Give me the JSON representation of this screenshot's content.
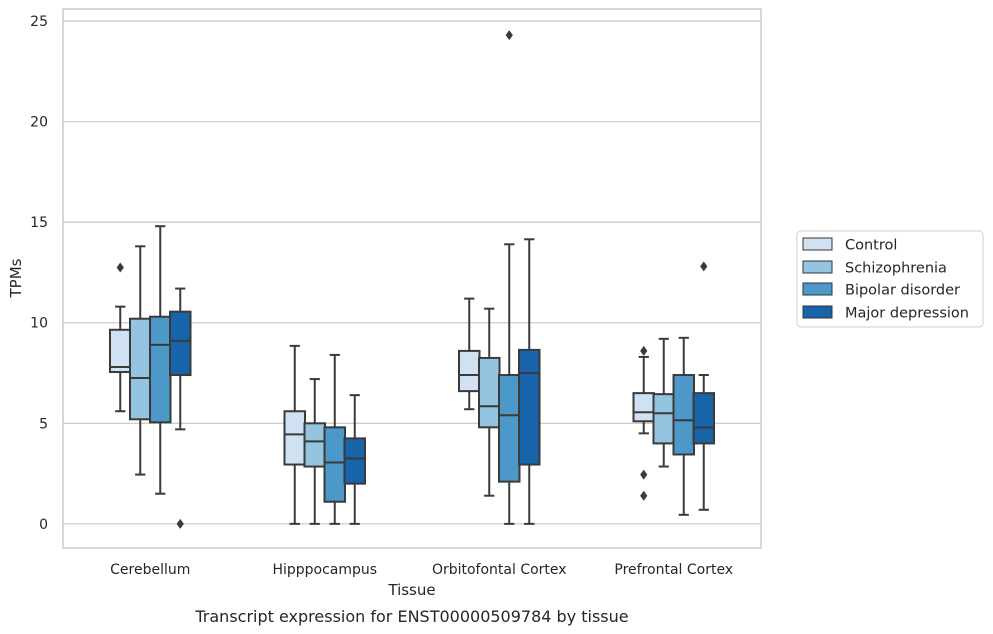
{
  "chart_data": {
    "type": "box",
    "title": "Transcript expression for ENST00000509784 by tissue",
    "xlabel": "Tissue",
    "ylabel": "TPMs",
    "ylim": [
      -1.2,
      25.6
    ],
    "yticks": [
      0,
      5,
      10,
      15,
      20,
      25
    ],
    "grid": "horizontal",
    "legend_position": "right",
    "categories": [
      "Cerebellum",
      "Hipppocampus",
      "Orbitofontal Cortex",
      "Prefrontal Cortex"
    ],
    "series": [
      {
        "name": "Control",
        "color": "#d0e1f2",
        "boxes": [
          {
            "whislo": 5.6,
            "q1": 7.55,
            "med": 7.8,
            "q3": 9.65,
            "whishi": 10.8,
            "fliers": [
              12.75
            ]
          },
          {
            "whislo": 0.0,
            "q1": 2.95,
            "med": 4.45,
            "q3": 5.6,
            "whishi": 8.85,
            "fliers": []
          },
          {
            "whislo": 5.7,
            "q1": 6.6,
            "med": 7.4,
            "q3": 8.6,
            "whishi": 11.2,
            "fliers": []
          },
          {
            "whislo": 4.5,
            "q1": 5.1,
            "med": 5.55,
            "q3": 6.5,
            "whishi": 8.3,
            "fliers": [
              8.6,
              2.45,
              1.4
            ]
          }
        ]
      },
      {
        "name": "Schizophrenia",
        "color": "#94c4df",
        "boxes": [
          {
            "whislo": 2.45,
            "q1": 5.2,
            "med": 7.25,
            "q3": 10.2,
            "whishi": 13.8,
            "fliers": []
          },
          {
            "whislo": 0.0,
            "q1": 2.85,
            "med": 4.1,
            "q3": 5.0,
            "whishi": 7.2,
            "fliers": []
          },
          {
            "whislo": 1.4,
            "q1": 4.8,
            "med": 5.85,
            "q3": 8.25,
            "whishi": 10.7,
            "fliers": []
          },
          {
            "whislo": 2.85,
            "q1": 4.0,
            "med": 5.5,
            "q3": 6.45,
            "whishi": 9.2,
            "fliers": []
          }
        ]
      },
      {
        "name": "Bipolar disorder",
        "color": "#4b98c9",
        "boxes": [
          {
            "whislo": 1.5,
            "q1": 5.05,
            "med": 8.9,
            "q3": 10.3,
            "whishi": 14.8,
            "fliers": []
          },
          {
            "whislo": 0.0,
            "q1": 1.1,
            "med": 3.05,
            "q3": 4.8,
            "whishi": 8.4,
            "fliers": []
          },
          {
            "whislo": 0.0,
            "q1": 2.1,
            "med": 5.4,
            "q3": 7.4,
            "whishi": 13.9,
            "fliers": [
              24.3
            ]
          },
          {
            "whislo": 0.45,
            "q1": 3.45,
            "med": 5.15,
            "q3": 7.4,
            "whishi": 9.25,
            "fliers": []
          }
        ]
      },
      {
        "name": "Major depression",
        "color": "#1764ab",
        "boxes": [
          {
            "whislo": 4.7,
            "q1": 7.4,
            "med": 9.1,
            "q3": 10.55,
            "whishi": 11.7,
            "fliers": [
              0.0
            ]
          },
          {
            "whislo": 0.0,
            "q1": 2.0,
            "med": 3.25,
            "q3": 4.25,
            "whishi": 6.4,
            "fliers": []
          },
          {
            "whislo": 0.0,
            "q1": 2.95,
            "med": 7.5,
            "q3": 8.65,
            "whishi": 14.15,
            "fliers": []
          },
          {
            "whislo": 0.7,
            "q1": 4.0,
            "med": 4.8,
            "q3": 6.5,
            "whishi": 7.4,
            "fliers": [
              12.8
            ]
          }
        ]
      }
    ]
  }
}
